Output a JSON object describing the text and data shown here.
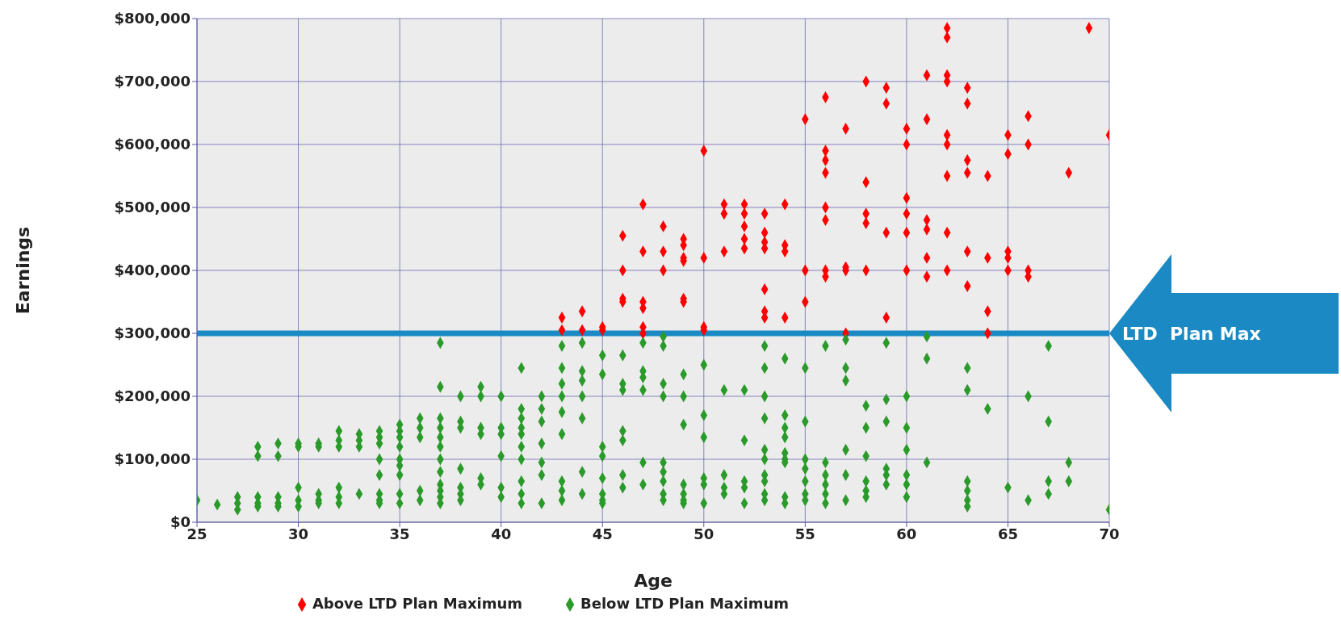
{
  "chart_data": {
    "type": "scatter",
    "xlabel": "Age",
    "ylabel": "Earnings",
    "xlim": [
      25,
      70
    ],
    "xticks": [
      25,
      30,
      35,
      40,
      45,
      50,
      55,
      60,
      65,
      70
    ],
    "ylim": [
      0,
      800000
    ],
    "yticks": [
      {
        "value": 0,
        "label": "$0"
      },
      {
        "value": 100000,
        "label": "$100,000"
      },
      {
        "value": 200000,
        "label": "$200,000"
      },
      {
        "value": 300000,
        "label": "$300,000"
      },
      {
        "value": 400000,
        "label": "$400,000"
      },
      {
        "value": 500000,
        "label": "$500,000"
      },
      {
        "value": 600000,
        "label": "$600,000"
      },
      {
        "value": 700000,
        "label": "$700,000"
      },
      {
        "value": 800000,
        "label": "$800,000"
      }
    ],
    "grid": true,
    "legend": "bottom",
    "marker": "diamond",
    "ref_lines": [
      {
        "axis": "y",
        "value": 300000,
        "label": "LTD  Plan Max",
        "color": "#1b8ac4"
      }
    ],
    "series": [
      {
        "name": "Above LTD Plan Maximum",
        "color": "#ff0000",
        "x": [
          43,
          43,
          44,
          44,
          45,
          45,
          46,
          46,
          46,
          46,
          47,
          47,
          47,
          47,
          47,
          47,
          48,
          48,
          48,
          49,
          49,
          49,
          49,
          49,
          49,
          50,
          50,
          50,
          50,
          51,
          51,
          51,
          52,
          52,
          52,
          52,
          52,
          53,
          53,
          53,
          53,
          53,
          53,
          53,
          54,
          54,
          54,
          54,
          55,
          55,
          55,
          56,
          56,
          56,
          56,
          56,
          56,
          56,
          56,
          57,
          57,
          57,
          57,
          58,
          58,
          58,
          58,
          58,
          59,
          59,
          59,
          59,
          60,
          60,
          60,
          60,
          60,
          60,
          61,
          61,
          61,
          61,
          61,
          61,
          62,
          62,
          62,
          62,
          62,
          62,
          62,
          62,
          62,
          63,
          63,
          63,
          63,
          63,
          63,
          64,
          64,
          64,
          64,
          65,
          65,
          65,
          65,
          65,
          66,
          66,
          66,
          66,
          68,
          69,
          70
        ],
        "values": [
          325000,
          305000,
          335000,
          305000,
          310000,
          305000,
          455000,
          400000,
          355000,
          350000,
          505000,
          430000,
          350000,
          340000,
          310000,
          300000,
          470000,
          430000,
          400000,
          450000,
          440000,
          420000,
          415000,
          355000,
          350000,
          590000,
          420000,
          310000,
          305000,
          505000,
          490000,
          430000,
          505000,
          490000,
          470000,
          450000,
          435000,
          490000,
          460000,
          445000,
          435000,
          370000,
          335000,
          325000,
          505000,
          440000,
          430000,
          325000,
          640000,
          400000,
          350000,
          675000,
          590000,
          575000,
          555000,
          500000,
          480000,
          400000,
          390000,
          625000,
          405000,
          400000,
          300000,
          700000,
          540000,
          490000,
          475000,
          400000,
          690000,
          665000,
          460000,
          325000,
          625000,
          600000,
          515000,
          490000,
          460000,
          400000,
          710000,
          640000,
          480000,
          465000,
          420000,
          390000,
          785000,
          770000,
          710000,
          700000,
          615000,
          600000,
          550000,
          460000,
          400000,
          690000,
          665000,
          575000,
          555000,
          430000,
          375000,
          550000,
          420000,
          335000,
          300000,
          615000,
          585000,
          430000,
          420000,
          400000,
          645000,
          600000,
          400000,
          390000,
          555000,
          785000,
          615000
        ]
      },
      {
        "name": "Below LTD Plan Maximum",
        "color": "#2a9a2a",
        "x": [
          25,
          26,
          27,
          27,
          27,
          28,
          28,
          28,
          28,
          28,
          29,
          29,
          29,
          29,
          29,
          30,
          30,
          30,
          30,
          30,
          31,
          31,
          31,
          31,
          31,
          32,
          32,
          32,
          32,
          32,
          32,
          33,
          33,
          33,
          33,
          34,
          34,
          34,
          34,
          34,
          34,
          34,
          34,
          35,
          35,
          35,
          35,
          35,
          35,
          35,
          35,
          35,
          36,
          36,
          36,
          36,
          36,
          37,
          37,
          37,
          37,
          37,
          37,
          37,
          37,
          37,
          37,
          37,
          37,
          38,
          38,
          38,
          38,
          38,
          38,
          38,
          39,
          39,
          39,
          39,
          39,
          39,
          40,
          40,
          40,
          40,
          40,
          40,
          41,
          41,
          41,
          41,
          41,
          41,
          41,
          41,
          41,
          41,
          42,
          42,
          42,
          42,
          42,
          42,
          42,
          43,
          43,
          43,
          43,
          43,
          43,
          43,
          43,
          43,
          44,
          44,
          44,
          44,
          44,
          44,
          44,
          45,
          45,
          45,
          45,
          45,
          45,
          45,
          45,
          46,
          46,
          46,
          46,
          46,
          46,
          46,
          47,
          47,
          47,
          47,
          47,
          47,
          48,
          48,
          48,
          48,
          48,
          48,
          48,
          48,
          48,
          49,
          49,
          49,
          49,
          49,
          49,
          49,
          50,
          50,
          50,
          50,
          50,
          50,
          51,
          51,
          51,
          51,
          52,
          52,
          52,
          52,
          52,
          53,
          53,
          53,
          53,
          53,
          53,
          53,
          53,
          53,
          53,
          54,
          54,
          54,
          54,
          54,
          54,
          54,
          54,
          54,
          55,
          55,
          55,
          55,
          55,
          55,
          55,
          56,
          56,
          56,
          56,
          56,
          56,
          57,
          57,
          57,
          57,
          57,
          57,
          58,
          58,
          58,
          58,
          58,
          58,
          59,
          59,
          59,
          59,
          59,
          59,
          60,
          60,
          60,
          60,
          60,
          60,
          61,
          61,
          61,
          63,
          63,
          63,
          63,
          63,
          63,
          64,
          65,
          66,
          66,
          67,
          67,
          67,
          67,
          68,
          68,
          70
        ],
        "values": [
          35000,
          28000,
          40000,
          30000,
          20000,
          120000,
          105000,
          40000,
          30000,
          25000,
          125000,
          105000,
          40000,
          30000,
          25000,
          125000,
          120000,
          55000,
          35000,
          25000,
          125000,
          120000,
          45000,
          35000,
          30000,
          145000,
          130000,
          120000,
          55000,
          40000,
          30000,
          140000,
          130000,
          120000,
          45000,
          145000,
          135000,
          125000,
          100000,
          75000,
          45000,
          35000,
          30000,
          155000,
          145000,
          135000,
          120000,
          100000,
          90000,
          75000,
          45000,
          30000,
          165000,
          150000,
          135000,
          50000,
          35000,
          285000,
          215000,
          165000,
          150000,
          135000,
          120000,
          100000,
          80000,
          60000,
          50000,
          40000,
          30000,
          200000,
          160000,
          150000,
          85000,
          55000,
          45000,
          35000,
          215000,
          200000,
          150000,
          140000,
          70000,
          60000,
          200000,
          150000,
          140000,
          105000,
          55000,
          40000,
          245000,
          180000,
          165000,
          150000,
          140000,
          120000,
          100000,
          65000,
          45000,
          30000,
          200000,
          180000,
          160000,
          125000,
          95000,
          75000,
          30000,
          280000,
          245000,
          220000,
          200000,
          175000,
          140000,
          65000,
          50000,
          35000,
          285000,
          240000,
          225000,
          200000,
          165000,
          80000,
          45000,
          265000,
          235000,
          120000,
          105000,
          70000,
          45000,
          35000,
          30000,
          265000,
          220000,
          210000,
          145000,
          130000,
          75000,
          55000,
          285000,
          240000,
          230000,
          210000,
          95000,
          60000,
          295000,
          280000,
          220000,
          200000,
          95000,
          80000,
          65000,
          45000,
          35000,
          235000,
          200000,
          155000,
          60000,
          45000,
          35000,
          30000,
          250000,
          170000,
          135000,
          70000,
          60000,
          30000,
          210000,
          75000,
          55000,
          45000,
          210000,
          130000,
          65000,
          55000,
          30000,
          280000,
          245000,
          200000,
          165000,
          115000,
          100000,
          75000,
          65000,
          45000,
          35000,
          260000,
          170000,
          150000,
          135000,
          110000,
          100000,
          95000,
          40000,
          30000,
          245000,
          160000,
          100000,
          85000,
          65000,
          45000,
          35000,
          280000,
          95000,
          75000,
          60000,
          45000,
          30000,
          290000,
          245000,
          225000,
          115000,
          75000,
          35000,
          185000,
          150000,
          105000,
          65000,
          50000,
          40000,
          285000,
          195000,
          160000,
          85000,
          75000,
          60000,
          200000,
          150000,
          115000,
          75000,
          60000,
          40000,
          295000,
          260000,
          95000,
          245000,
          210000,
          65000,
          50000,
          35000,
          25000,
          180000,
          55000,
          200000,
          35000,
          280000,
          160000,
          65000,
          45000,
          95000,
          65000,
          20000
        ]
      }
    ]
  }
}
